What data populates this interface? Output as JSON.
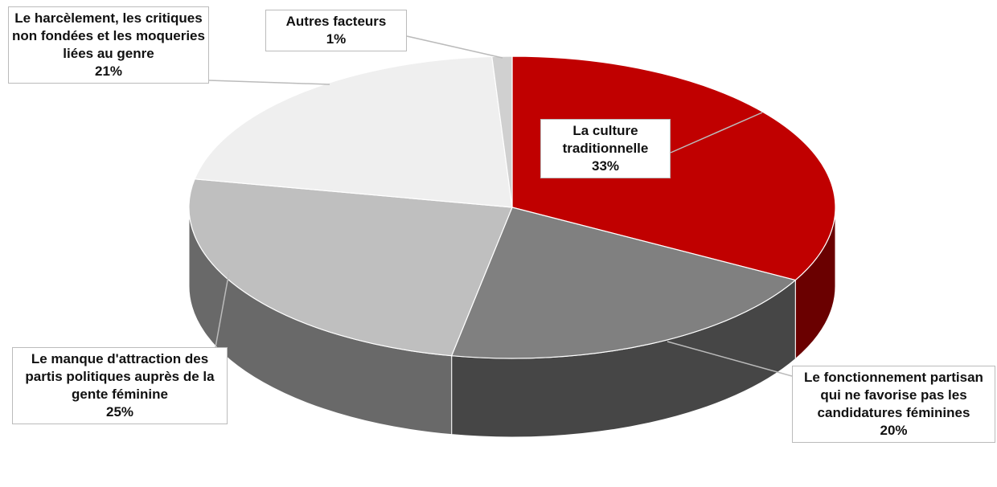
{
  "chart_data": {
    "type": "pie3d",
    "categories": [
      "La culture traditionnelle",
      "Le fonctionnement partisan qui ne favorise pas les candidatures féminines",
      "Le manque d'attraction des partis politiques auprès de la gente féminine",
      "Le harcèlement, les critiques non fondées et les moqueries liées au genre",
      "Autres facteurs"
    ],
    "values": [
      33,
      20,
      25,
      21,
      1
    ],
    "value_labels": [
      "33%",
      "20%",
      "25%",
      "21%",
      "1%"
    ],
    "colors": [
      "#c00000",
      "#808080",
      "#bfbfbf",
      "#efefef",
      "#d0d0d0"
    ]
  }
}
